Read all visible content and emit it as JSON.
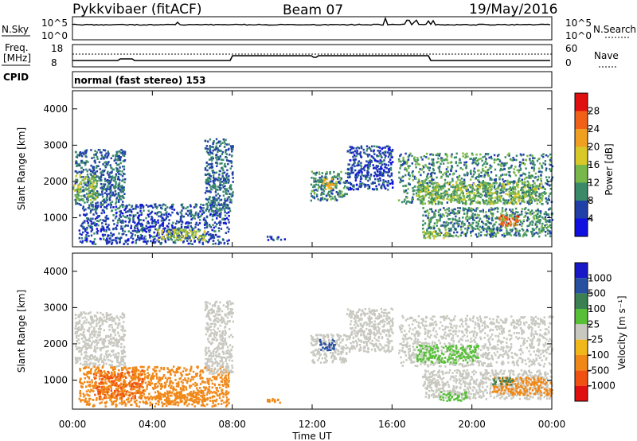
{
  "header": {
    "station": "Pykkvibaer (fitACF)",
    "beam": "Beam 07",
    "date": "19/May/2016"
  },
  "top_strips": {
    "nsky_label": "N.Sky",
    "nsky_ticks": [
      "10^5",
      "10^0"
    ],
    "nsearch_label": "N.Search",
    "nsearch_ticks": [
      "10^5",
      "10^0"
    ],
    "freq_label_1": "Freq.",
    "freq_label_2": "[MHz]",
    "freq_ticks": [
      "18",
      "8"
    ],
    "nave_label": "Nave",
    "nave_ticks": [
      "60",
      "0"
    ],
    "cpid_label": "CPID",
    "cpid_text": "normal (fast stereo) 153"
  },
  "colors": {
    "power_scale": [
      "#1010e0",
      "#2040a8",
      "#3a8a6a",
      "#78b84a",
      "#d8c828",
      "#f0a020",
      "#f06018",
      "#e01010"
    ],
    "velocity_scale": [
      "#1818c8",
      "#2850a0",
      "#3a8050",
      "#58c038",
      "#c8c8c0",
      "#f0b818",
      "#f08818",
      "#f05010",
      "#e01010"
    ]
  },
  "chart_data": [
    {
      "type": "heatmap",
      "name": "power",
      "x_range_hours": [
        0,
        24
      ],
      "xticks": [
        "00:00",
        "04:00",
        "08:00",
        "12:00",
        "16:00",
        "20:00",
        "00:00"
      ],
      "ylabel": "Slant Range [km]",
      "ylim": [
        200,
        4500
      ],
      "yticks": [
        "1000",
        "2000",
        "3000",
        "4000"
      ],
      "colorbar_label": "Power [dB]",
      "colorbar_ticks": [
        "4",
        "8",
        "12",
        "16",
        "20",
        "24",
        "28"
      ],
      "colorbar_range": [
        0,
        32
      ],
      "regions": [
        {
          "t": [
            0.1,
            2.6
          ],
          "r": [
            1400,
            2900
          ],
          "v": 8
        },
        {
          "t": [
            0.0,
            1.2
          ],
          "r": [
            1500,
            2200
          ],
          "v": 14
        },
        {
          "t": [
            0.3,
            7.8
          ],
          "r": [
            300,
            1400
          ],
          "v": 6
        },
        {
          "t": [
            4.2,
            6.6
          ],
          "r": [
            400,
            700
          ],
          "v": 16
        },
        {
          "t": [
            6.6,
            8.0
          ],
          "r": [
            1200,
            3200
          ],
          "v": 8
        },
        {
          "t": [
            9.7,
            10.6
          ],
          "r": [
            400,
            520
          ],
          "v": 6
        },
        {
          "t": [
            11.9,
            13.7
          ],
          "r": [
            1500,
            2300
          ],
          "v": 10
        },
        {
          "t": [
            12.5,
            13.2
          ],
          "r": [
            1800,
            2100
          ],
          "v": 20
        },
        {
          "t": [
            13.7,
            16.0
          ],
          "r": [
            1800,
            3000
          ],
          "v": 6
        },
        {
          "t": [
            16.3,
            24.0
          ],
          "r": [
            1400,
            2800
          ],
          "v": 10
        },
        {
          "t": [
            17.2,
            23.5
          ],
          "r": [
            1400,
            2000
          ],
          "v": 14
        },
        {
          "t": [
            17.5,
            24.0
          ],
          "r": [
            500,
            1300
          ],
          "v": 10
        },
        {
          "t": [
            21.3,
            22.3
          ],
          "r": [
            800,
            1100
          ],
          "v": 26
        },
        {
          "t": [
            17.5,
            18.8
          ],
          "r": [
            450,
            650
          ],
          "v": 16
        }
      ]
    },
    {
      "type": "heatmap",
      "name": "velocity",
      "x_range_hours": [
        0,
        24
      ],
      "xticks": [
        "00:00",
        "04:00",
        "08:00",
        "12:00",
        "16:00",
        "20:00",
        "00:00"
      ],
      "xlabel": "Time UT",
      "ylabel": "Slant Range [km]",
      "ylim": [
        200,
        4500
      ],
      "yticks": [
        "1000",
        "2000",
        "3000",
        "4000"
      ],
      "colorbar_label": "Velocity [m s⁻¹]",
      "colorbar_ticks": [
        "1000",
        "500",
        "100",
        "25",
        "-25",
        "-100",
        "-500",
        "-1000"
      ],
      "regions": [
        {
          "t": [
            0.1,
            2.6
          ],
          "r": [
            1400,
            2900
          ],
          "v": 0
        },
        {
          "t": [
            0.3,
            7.8
          ],
          "r": [
            300,
            1400
          ],
          "v": -150
        },
        {
          "t": [
            1.0,
            3.5
          ],
          "r": [
            500,
            1300
          ],
          "v": -500
        },
        {
          "t": [
            4.2,
            6.6
          ],
          "r": [
            400,
            700
          ],
          "v": -200
        },
        {
          "t": [
            6.6,
            8.0
          ],
          "r": [
            1200,
            3200
          ],
          "v": 0
        },
        {
          "t": [
            9.7,
            10.6
          ],
          "r": [
            400,
            520
          ],
          "v": -150
        },
        {
          "t": [
            11.9,
            13.7
          ],
          "r": [
            1500,
            2300
          ],
          "v": 0
        },
        {
          "t": [
            12.3,
            13.1
          ],
          "r": [
            1850,
            2150
          ],
          "v": 600
        },
        {
          "t": [
            13.7,
            16.0
          ],
          "r": [
            1800,
            3000
          ],
          "v": 0
        },
        {
          "t": [
            16.3,
            24.0
          ],
          "r": [
            1400,
            2800
          ],
          "v": 0
        },
        {
          "t": [
            17.2,
            20.3
          ],
          "r": [
            1500,
            2000
          ],
          "v": 60
        },
        {
          "t": [
            17.5,
            24.0
          ],
          "r": [
            500,
            1300
          ],
          "v": 0
        },
        {
          "t": [
            21.0,
            24.0
          ],
          "r": [
            600,
            1100
          ],
          "v": -400
        },
        {
          "t": [
            18.3,
            19.7
          ],
          "r": [
            450,
            700
          ],
          "v": 80
        },
        {
          "t": [
            21.0,
            22.0
          ],
          "r": [
            900,
            1100
          ],
          "v": 200
        }
      ]
    }
  ]
}
